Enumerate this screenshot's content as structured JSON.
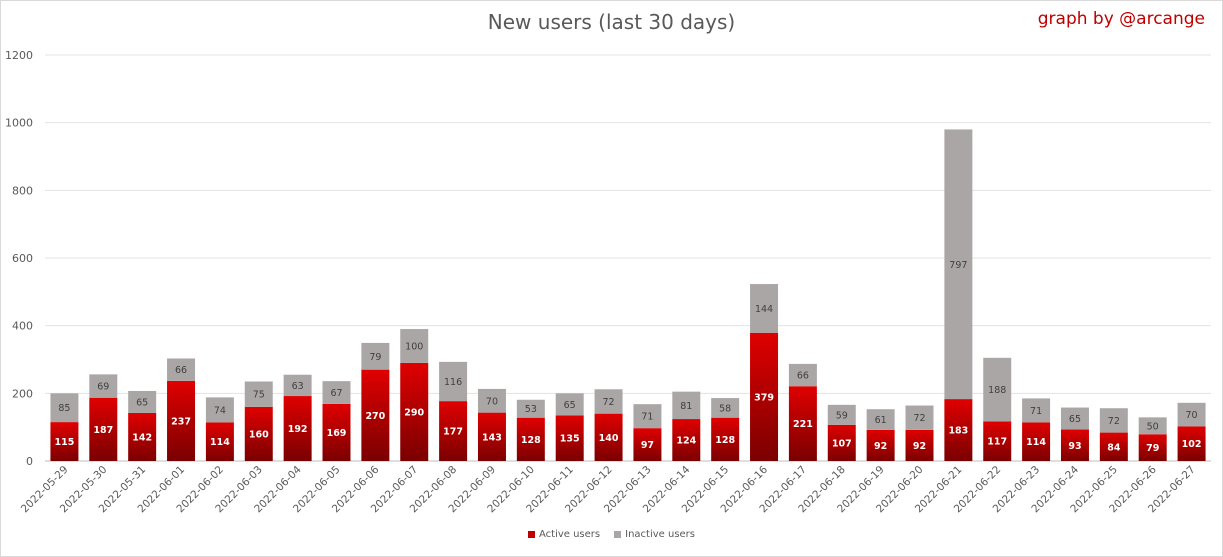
{
  "chart_data": {
    "type": "bar",
    "stacked": true,
    "title": "New users (last 30 days)",
    "credit": "graph by @arcange",
    "categories": [
      "2022-05-29",
      "2022-05-30",
      "2022-05-31",
      "2022-06-01",
      "2022-06-02",
      "2022-06-03",
      "2022-06-04",
      "2022-06-05",
      "2022-06-06",
      "2022-06-07",
      "2022-06-08",
      "2022-06-09",
      "2022-06-10",
      "2022-06-11",
      "2022-06-12",
      "2022-06-13",
      "2022-06-14",
      "2022-06-15",
      "2022-06-16",
      "2022-06-17",
      "2022-06-18",
      "2022-06-19",
      "2022-06-20",
      "2022-06-21",
      "2022-06-22",
      "2022-06-23",
      "2022-06-24",
      "2022-06-25",
      "2022-06-26",
      "2022-06-27"
    ],
    "series": [
      {
        "name": "Active users",
        "color": "#c00000",
        "values": [
          115,
          187,
          142,
          237,
          114,
          160,
          192,
          169,
          270,
          290,
          177,
          143,
          128,
          135,
          140,
          97,
          124,
          128,
          379,
          221,
          107,
          92,
          92,
          183,
          117,
          114,
          93,
          84,
          79,
          102
        ]
      },
      {
        "name": "Inactive users",
        "color": "#aaa6a6",
        "values": [
          85,
          69,
          65,
          66,
          74,
          75,
          63,
          67,
          79,
          100,
          116,
          70,
          53,
          65,
          72,
          71,
          81,
          58,
          144,
          66,
          59,
          61,
          72,
          797,
          188,
          71,
          65,
          72,
          50,
          70
        ]
      }
    ],
    "ylim": [
      0,
      1200
    ],
    "yticks": [
      0,
      200,
      400,
      600,
      800,
      1000,
      1200
    ],
    "grid": true,
    "legend_position": "bottom"
  }
}
